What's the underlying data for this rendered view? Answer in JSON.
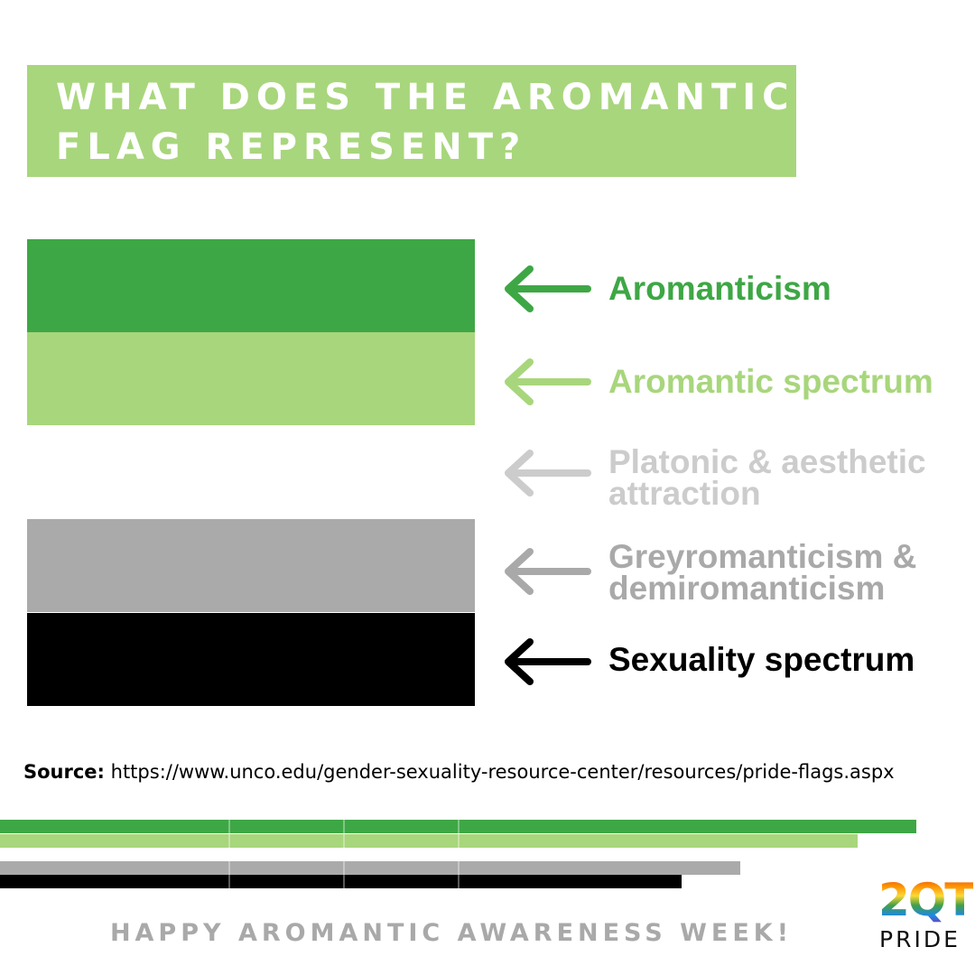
{
  "title": {
    "line1": "WHAT DOES THE AROMANTIC",
    "line2": "FLAG REPRESENT?"
  },
  "colors": {
    "dark_green": "#3ea745",
    "light_green": "#a8d67c",
    "white": "#ffffff",
    "grey": "#aaaaaa",
    "black": "#000000",
    "platonic_text": "#cccccc",
    "grey_text": "#a9a9a9",
    "title_bg": "#a8d67c",
    "footer_text": "#a9a9a9"
  },
  "flag_stripes": [
    {
      "label_line1": "Aromanticism",
      "label_line2": "",
      "color": "#3ea745",
      "text_color": "#3ea745",
      "icon": "left-arrow-icon"
    },
    {
      "label_line1": "Aromantic spectrum",
      "label_line2": "",
      "color": "#a8d67c",
      "text_color": "#a8d67c",
      "icon": "left-arrow-icon"
    },
    {
      "label_line1": "Platonic & aesthetic",
      "label_line2": "attraction",
      "color": "#ffffff",
      "text_color": "#cccccc",
      "icon": "left-arrow-icon"
    },
    {
      "label_line1": "Greyromanticism &",
      "label_line2": "demiromanticism",
      "color": "#aaaaaa",
      "text_color": "#a9a9a9",
      "icon": "left-arrow-icon"
    },
    {
      "label_line1": "Sexuality spectrum",
      "label_line2": "",
      "color": "#000000",
      "text_color": "#000000",
      "icon": "left-arrow-icon"
    }
  ],
  "source": {
    "label": "Source:",
    "url": "https://www.unco.edu/gender-sexuality-resource-center/resources/pride-flags.aspx"
  },
  "footer": "HAPPY AROMANTIC AWARENESS WEEK!",
  "logo": {
    "mark": "2QT",
    "sub": "PRIDE"
  }
}
